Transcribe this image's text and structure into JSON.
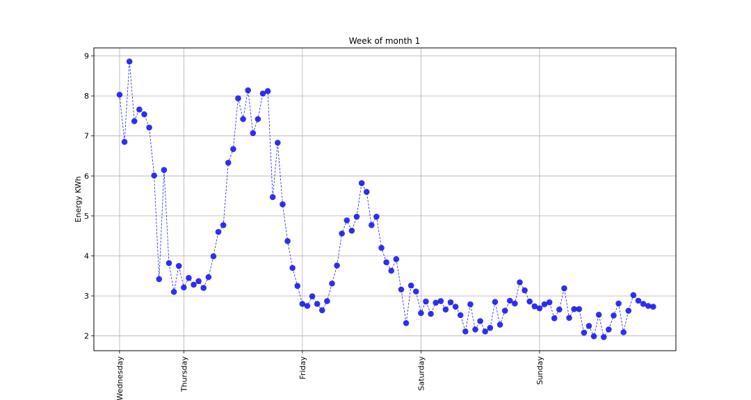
{
  "chart_data": {
    "type": "line",
    "title": "Week of month 1",
    "xlabel": "",
    "ylabel": "Energy KWh",
    "ylim": [
      1.63,
      9.2
    ],
    "yticks": [
      2,
      3,
      4,
      5,
      6,
      7,
      8,
      9
    ],
    "xlim": [
      -5.2,
      112.6
    ],
    "xticks": [
      {
        "label": "Wednesday",
        "x": 0
      },
      {
        "label": "Thursday",
        "x": 13
      },
      {
        "label": "Friday",
        "x": 37
      },
      {
        "label": "Saturday",
        "x": 61
      },
      {
        "label": "Sunday",
        "x": 85
      }
    ],
    "grid": true,
    "marker_color": "#1a1aee",
    "line_style": "dashed",
    "series": [
      {
        "values": [
          8.03,
          6.85,
          8.86,
          7.37,
          7.66,
          7.54,
          7.21,
          6.01,
          3.42,
          6.15,
          3.82,
          3.1,
          3.75,
          3.21,
          3.45,
          3.28,
          3.37,
          3.2,
          3.47,
          3.99,
          4.6,
          4.77,
          6.33,
          6.67,
          7.94,
          7.42,
          8.14,
          7.07,
          7.42,
          8.06,
          8.12,
          5.47,
          6.83,
          5.29,
          4.37,
          3.7,
          3.25,
          2.8,
          2.75,
          2.99,
          2.8,
          2.64,
          2.87,
          3.31,
          3.76,
          4.56,
          4.89,
          4.63,
          4.98,
          5.82,
          5.6,
          4.77,
          4.98,
          4.2,
          3.84,
          3.63,
          3.92,
          3.16,
          2.32,
          3.26,
          3.11,
          2.57,
          2.86,
          2.55,
          2.83,
          2.87,
          2.66,
          2.84,
          2.73,
          2.52,
          2.11,
          2.79,
          2.16,
          2.37,
          2.11,
          2.2,
          2.85,
          2.28,
          2.63,
          2.88,
          2.81,
          3.34,
          3.14,
          2.86,
          2.74,
          2.69,
          2.79,
          2.84,
          2.44,
          2.66,
          3.19,
          2.45,
          2.67,
          2.67,
          2.08,
          2.25,
          1.99,
          2.53,
          1.97,
          2.16,
          2.51,
          2.81,
          2.09,
          2.63,
          3.02,
          2.88,
          2.8,
          2.75,
          2.73
        ]
      }
    ]
  }
}
